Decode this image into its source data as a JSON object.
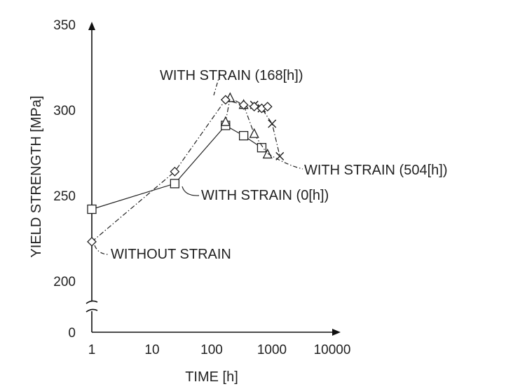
{
  "chart_data": {
    "type": "line",
    "xlabel": "TIME [h]",
    "ylabel": "YIELD STRENGTH [MPa]",
    "x_scale": "log",
    "xlim": [
      1,
      10000
    ],
    "x_ticks": [
      1,
      10,
      100,
      1000,
      10000
    ],
    "x_tick_labels": [
      "1",
      "10",
      "100",
      "1000",
      "10000"
    ],
    "y_axis_break": true,
    "ylim": [
      200,
      350
    ],
    "y_ticks": [
      200,
      250,
      300,
      350
    ],
    "y_tick_labels": [
      "0",
      "200",
      "250",
      "300",
      "350"
    ],
    "grid": false,
    "legend": "none",
    "series": [
      {
        "name": "WITH STRAIN (0[h])",
        "line": "solid",
        "marker": "square",
        "x": [
          1,
          24,
          168,
          336,
          672
        ],
        "y": [
          242,
          257,
          291,
          285,
          278
        ]
      },
      {
        "name": "WITH STRAIN (168[h])",
        "line": "dashdot",
        "marker": "triangle",
        "x": [
          168,
          200,
          336,
          504,
          840
        ],
        "y": [
          293,
          307,
          303,
          286,
          274
        ]
      },
      {
        "name": "WITH STRAIN (504[h])",
        "line": "dashdot",
        "marker": "cross",
        "x": [
          504,
          672,
          1000,
          1344
        ],
        "y": [
          303,
          301,
          292,
          273
        ]
      },
      {
        "name": "WITHOUT STRAIN",
        "line": "dashdot",
        "marker": "diamond",
        "x": [
          1,
          24,
          168,
          336,
          504,
          672,
          840
        ],
        "y": [
          223,
          264,
          306,
          303,
          302,
          301,
          302
        ]
      }
    ],
    "annotations": [
      "WITH STRAIN (168[h])",
      "WITH STRAIN (504[h])",
      "WITH STRAIN (0[h])",
      "WITHOUT STRAIN"
    ]
  }
}
